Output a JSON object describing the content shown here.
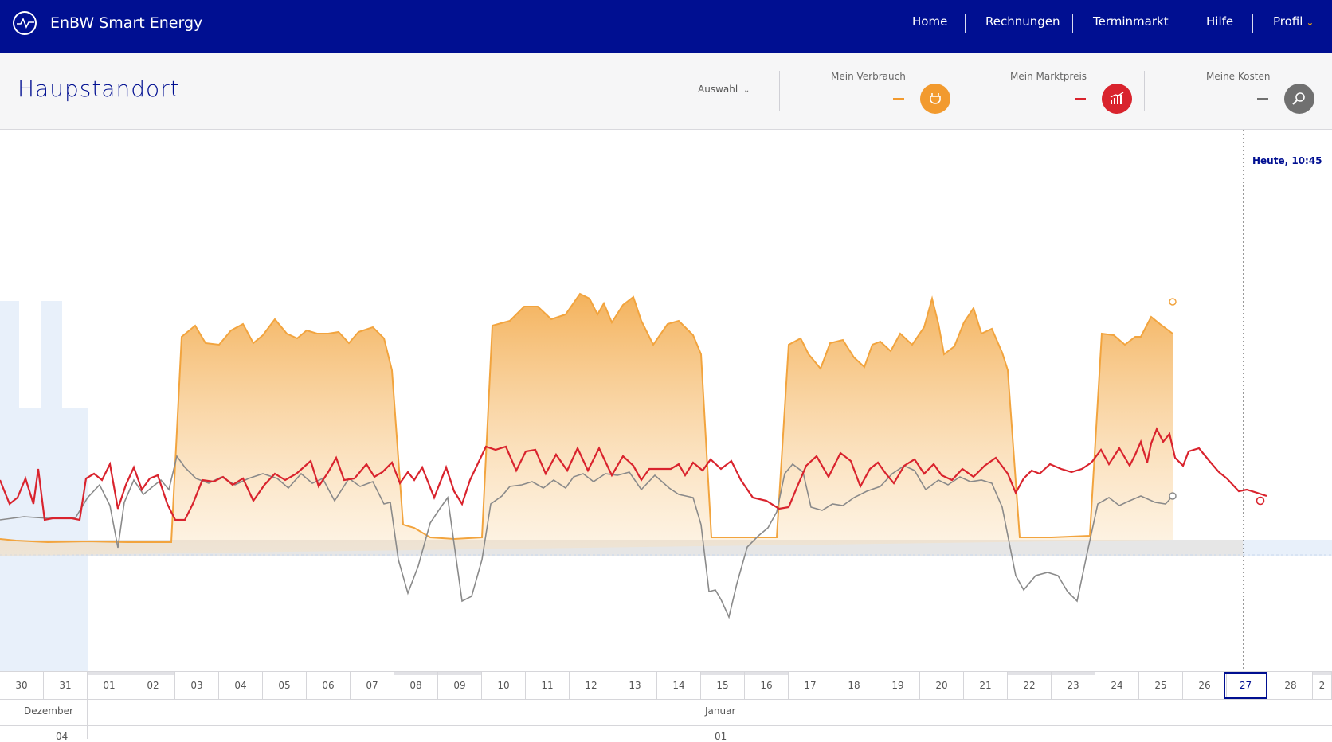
{
  "header": {
    "app_title": "EnBW Smart Energy",
    "nav": [
      "Home",
      "Rechnungen",
      "Terminmarkt",
      "Hilfe",
      "Profil"
    ]
  },
  "location": {
    "title": "Haupstandort",
    "selector_label": "Auswahl"
  },
  "kpis": [
    {
      "label": "Mein Verbrauch",
      "value": "—",
      "icon": "plug-icon",
      "color": "#f29a2e"
    },
    {
      "label": "Mein Marktpreis",
      "value": "—",
      "icon": "bar-chart-icon",
      "color": "#d9232d"
    },
    {
      "label": "Meine Kosten",
      "value": "—",
      "icon": "euro-search-icon",
      "color": "#707070"
    }
  ],
  "chart": {
    "today_label": "Heute, 10:45",
    "colors": {
      "consumption": "#f29a2e",
      "market_price": "#d9232d",
      "costs": "#808080",
      "grey_band": "#e6e6e6",
      "blue_bg": "#e8f0fa"
    }
  },
  "timeline": {
    "days": [
      "30",
      "31",
      "01",
      "02",
      "03",
      "04",
      "05",
      "06",
      "07",
      "08",
      "09",
      "10",
      "11",
      "12",
      "13",
      "14",
      "15",
      "16",
      "17",
      "18",
      "19",
      "20",
      "21",
      "22",
      "23",
      "24",
      "25",
      "26",
      "27",
      "28",
      "2"
    ],
    "selected_day": "27",
    "months": [
      "Dezember",
      "Januar"
    ],
    "weeks": [
      "04",
      "01"
    ]
  }
}
